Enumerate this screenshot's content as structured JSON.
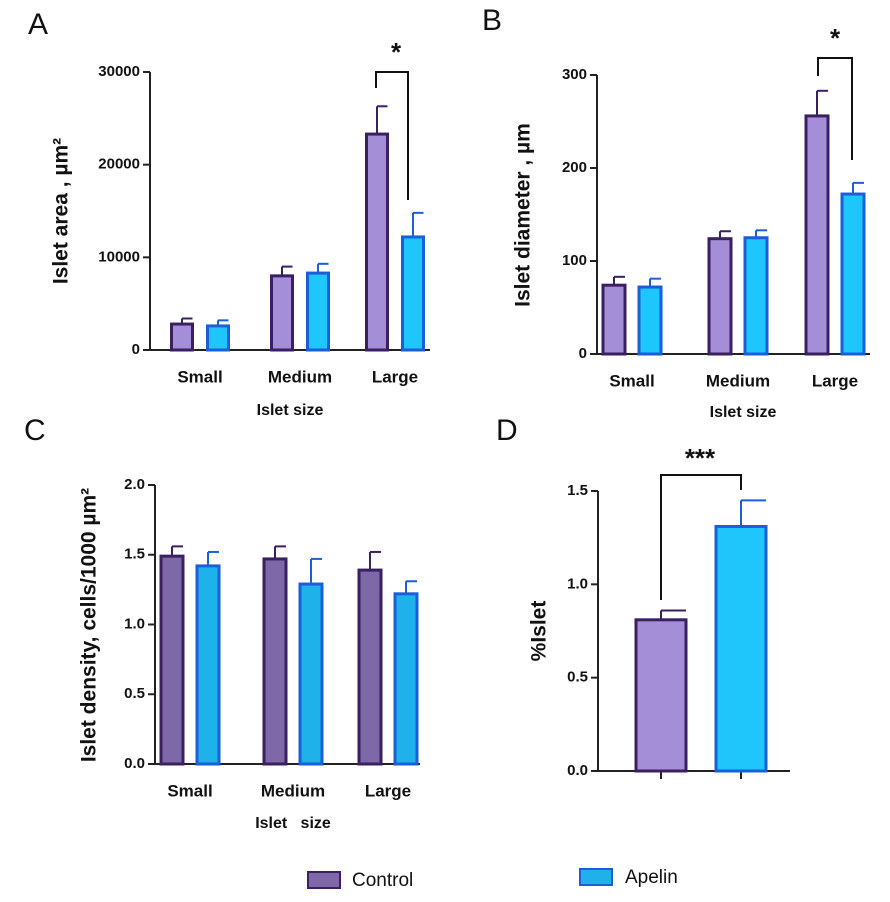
{
  "chart_data": [
    {
      "type": "bar",
      "panel": "A",
      "ylabel": "Islet area , µm²",
      "xlabel": "Islet size",
      "annotation": "*",
      "categories": [
        "Small",
        "Medium",
        "Large"
      ],
      "series": [
        {
          "name": "Control",
          "color": "#a48ed8",
          "values": [
            2800,
            8000,
            23300
          ],
          "errors": [
            600,
            1000,
            3000
          ]
        },
        {
          "name": "Apelin",
          "color": "#1fc6fb",
          "values": [
            2600,
            8300,
            12200
          ],
          "errors": [
            600,
            1000,
            2600
          ]
        }
      ],
      "ylim": [
        0,
        30000
      ],
      "yticks": [
        0,
        10000,
        20000,
        30000
      ]
    },
    {
      "type": "bar",
      "panel": "B",
      "ylabel": "Islet diameter , µm",
      "xlabel": "Islet size",
      "annotation": "*",
      "categories": [
        "Small",
        "Medium",
        "Large"
      ],
      "series": [
        {
          "name": "Control",
          "color": "#a48ed8",
          "values": [
            74,
            124,
            256
          ],
          "errors": [
            9,
            8,
            27
          ]
        },
        {
          "name": "Apelin",
          "color": "#1fc6fb",
          "values": [
            72,
            125,
            172
          ],
          "errors": [
            9,
            8,
            12
          ]
        }
      ],
      "ylim": [
        0,
        300
      ],
      "yticks": [
        0,
        100,
        200,
        300
      ]
    },
    {
      "type": "bar",
      "panel": "C",
      "ylabel": "Islet density, cells/1000 µm²",
      "xlabel": "Islet   size",
      "categories": [
        "Small",
        "Medium",
        "Large"
      ],
      "series": [
        {
          "name": "Control",
          "color": "#7e68a8",
          "values": [
            1.49,
            1.47,
            1.39
          ],
          "errors": [
            0.07,
            0.09,
            0.13
          ]
        },
        {
          "name": "Apelin",
          "color": "#1fb2ea",
          "values": [
            1.42,
            1.29,
            1.22
          ],
          "errors": [
            0.1,
            0.18,
            0.09
          ]
        }
      ],
      "ylim": [
        0,
        2
      ],
      "yticks": [
        {
          "value": 0,
          "label": "0.0"
        },
        0.5,
        {
          "value": 1,
          "label": "1.0"
        },
        1.5,
        {
          "value": 2,
          "label": "2.0"
        }
      ]
    },
    {
      "type": "bar",
      "panel": "D",
      "ylabel": "%Islet",
      "annotation": "***",
      "categories": [
        null,
        null
      ],
      "series": [
        {
          "name": "Control",
          "color": "#a48ed8",
          "values": [
            0.81,
            null
          ],
          "errors": [
            0.05,
            null
          ]
        },
        {
          "name": "Apelin",
          "color": "#1fc6fb",
          "values": [
            null,
            1.31
          ],
          "errors": [
            null,
            0.14
          ]
        }
      ],
      "ylim": [
        0,
        1.5
      ],
      "yticks": [
        {
          "value": 0,
          "label": "0.0"
        },
        0.5,
        {
          "value": 1,
          "label": "1.0"
        },
        1.5
      ]
    }
  ]
}
